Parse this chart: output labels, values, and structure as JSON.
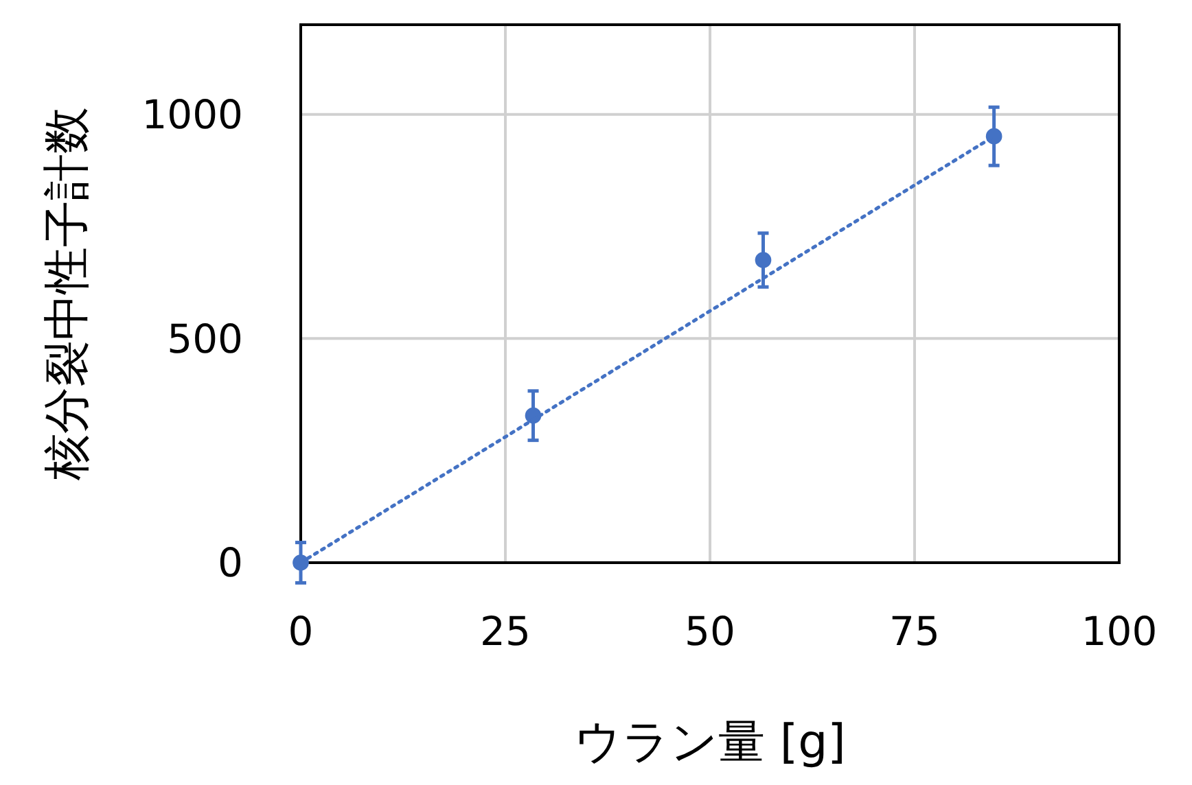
{
  "chart_data": {
    "type": "scatter",
    "xlabel": "ウラン量 [g]",
    "ylabel": "核分裂中性子計数",
    "xlim": [
      0,
      100
    ],
    "ylim": [
      0,
      1200
    ],
    "xticks": [
      0,
      25,
      50,
      75,
      100
    ],
    "yticks": [
      0,
      500,
      1000
    ],
    "grid": true,
    "marker": "circle",
    "series": [
      {
        "color": "#4472c4",
        "x": [
          0,
          28.4,
          56.5,
          84.7
        ],
        "values": [
          0,
          328,
          675,
          951
        ],
        "errors": [
          45,
          55,
          60,
          65
        ]
      },
      {
        "type": "line",
        "color": "#4472c4",
        "line_style": "dotted",
        "marker": "none",
        "x": [
          0,
          84.7
        ],
        "values": [
          0,
          951
        ]
      }
    ]
  }
}
